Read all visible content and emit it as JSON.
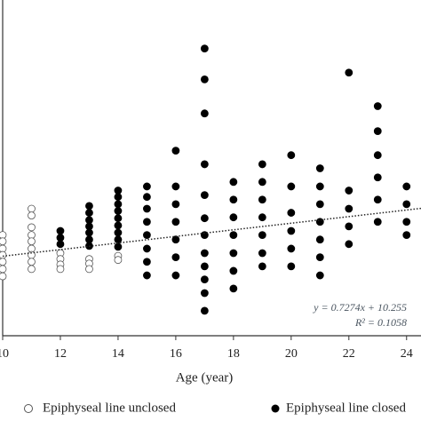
{
  "chart_data": {
    "type": "scatter",
    "x_label": "Age (year)",
    "xlim": [
      10,
      24.5
    ],
    "xticks": [
      10,
      12,
      14,
      16,
      18,
      20,
      22,
      24
    ],
    "ylim": [
      0,
      74
    ],
    "series": [
      {
        "name": "Epiphyseal line unclosed",
        "color": "#ffffff",
        "stroke": "#555555",
        "x": [
          10,
          10,
          10,
          10,
          10,
          10,
          10,
          11,
          11,
          11,
          11,
          11,
          11,
          11,
          11,
          11,
          12,
          12,
          12,
          12,
          13,
          13,
          13,
          14,
          14
        ],
        "values": [
          22.2,
          20.8,
          19.2,
          17.8,
          16.3,
          14.7,
          13.1,
          28,
          26.5,
          23.9,
          22.2,
          20.8,
          19.2,
          17.8,
          16.3,
          14.7,
          18.2,
          16.9,
          15.7,
          14.7,
          16.9,
          15.9,
          14.7,
          17.6,
          16.7
        ]
      },
      {
        "name": "Epiphyseal line closed",
        "color": "#000000",
        "stroke": "#000000",
        "x": [
          12,
          12,
          12,
          13,
          13,
          13,
          13,
          13,
          13,
          13,
          14,
          14,
          14,
          14,
          14,
          14,
          14,
          14,
          14,
          15,
          15,
          15,
          15,
          15,
          15,
          15,
          15,
          16,
          16,
          16,
          16,
          16,
          16,
          16,
          17,
          17,
          17,
          17,
          17,
          17,
          17,
          17,
          17,
          17,
          17,
          17,
          18,
          18,
          18,
          18,
          18,
          18,
          18,
          19,
          19,
          19,
          19,
          19,
          19,
          19,
          20,
          20,
          20,
          20,
          20,
          20,
          21,
          21,
          21,
          21,
          21,
          21,
          21,
          22,
          22,
          22,
          22,
          22,
          23,
          23,
          23,
          23,
          23,
          23,
          24,
          24,
          24,
          24
        ],
        "values": [
          23.1,
          21.6,
          20.2,
          28.6,
          27.1,
          25.5,
          24.1,
          22.7,
          21.2,
          19.8,
          32,
          30.6,
          29,
          27.5,
          25.9,
          24.3,
          22.7,
          21.2,
          19.6,
          32.9,
          30.6,
          28,
          25.1,
          22.2,
          19.2,
          16.3,
          13.3,
          40.8,
          32.9,
          29,
          25.1,
          21.2,
          17.3,
          13.3,
          63.3,
          56.5,
          49,
          37.8,
          31,
          25.9,
          22.2,
          18.2,
          15.3,
          12.4,
          9.4,
          5.5,
          33.9,
          30,
          26.1,
          22.2,
          18.2,
          14.3,
          10.4,
          37.8,
          33.9,
          30,
          26.1,
          22.2,
          18.2,
          15.3,
          39.8,
          32.9,
          27.1,
          23.1,
          19.2,
          15.3,
          36.9,
          32.9,
          29,
          25.1,
          21.2,
          17.3,
          13.3,
          58,
          32,
          28,
          24.1,
          20.2,
          50.6,
          45.1,
          39.8,
          34.9,
          30,
          25.1,
          32.9,
          29,
          25.1,
          22.2
        ]
      }
    ],
    "trendline": {
      "slope": 0.7274,
      "intercept": 10.255,
      "equation": "y = 0.7274x + 10.255",
      "r_squared": "R² = 0.1058"
    }
  }
}
